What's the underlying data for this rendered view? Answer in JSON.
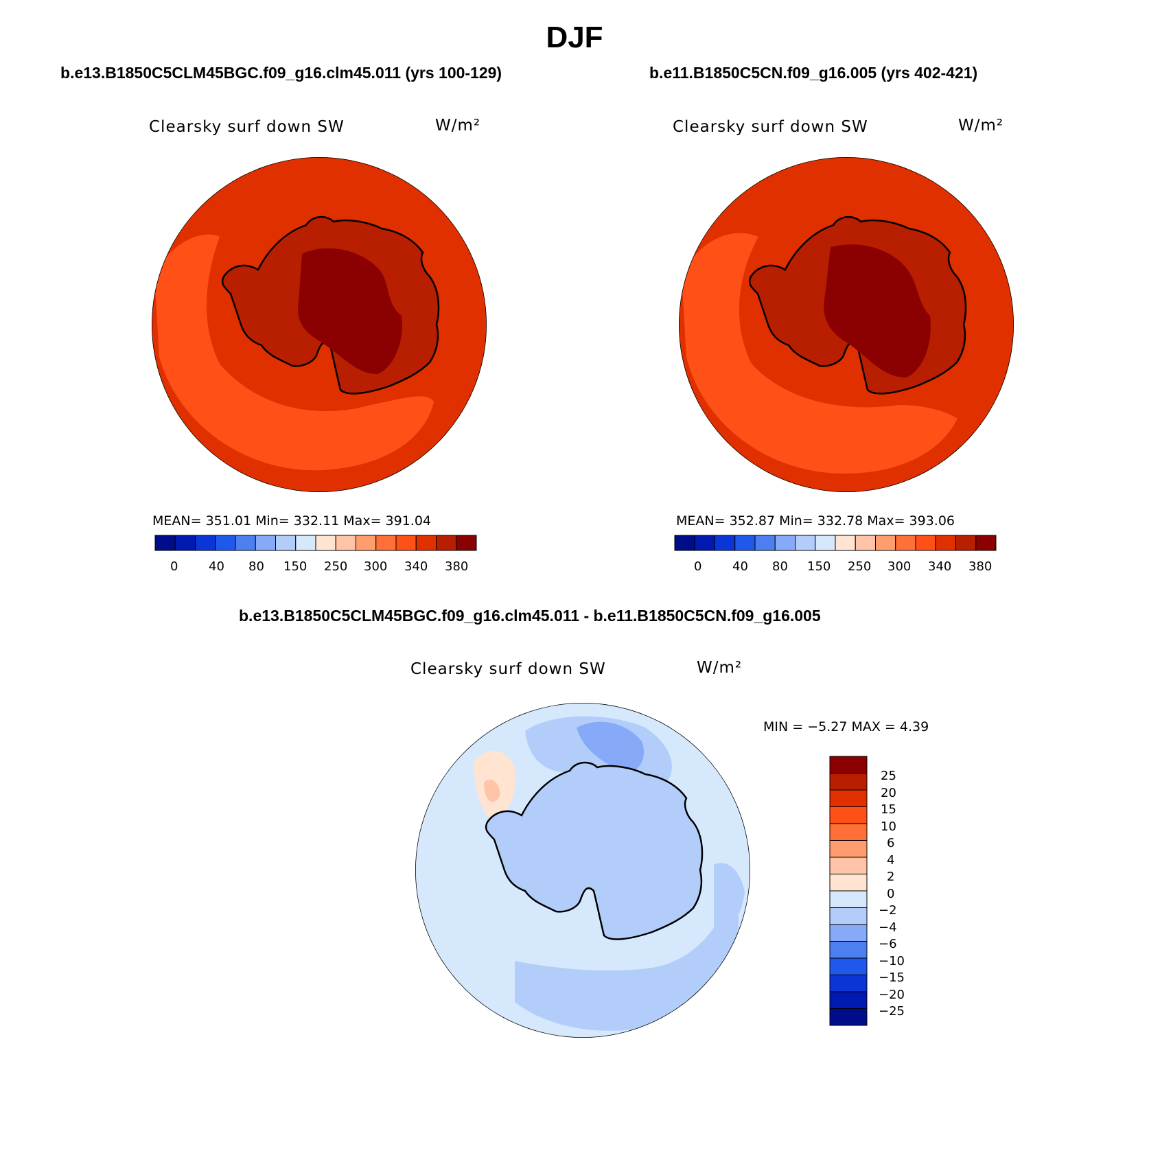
{
  "page": {
    "title": "DJF",
    "diff_title": "b.e13.B1850C5CLM45BGC.f09_g16.clm45.011 - b.e11.B1850C5CN.f09_g16.005"
  },
  "colors": {
    "map_warm": [
      "#8b0000",
      "#b81e00",
      "#e03000",
      "#ff5018",
      "#ff7038",
      "#ff9d6e",
      "#ffc3a8",
      "#ffe4d2"
    ],
    "map_cool": [
      "#d6e8fc",
      "#b3cdfb",
      "#86aaf7",
      "#4c7ff0",
      "#2058ec",
      "#0a36d6",
      "#0019b0",
      "#000d8a"
    ],
    "continent_outline": "#000000"
  },
  "panels": [
    {
      "id": "left",
      "title": "b.e13.B1850C5CLM45BGC.f09_g16.clm45.011 (yrs 100-129)",
      "variable": "Clearsky surf down SW",
      "units": "W/m²",
      "stats": "MEAN= 351.01   Min= 332.11   Max= 391.04",
      "mean": 351.01,
      "min": 332.11,
      "max": 391.04,
      "colorbar_ticks": [
        "0",
        "40",
        "80",
        "150",
        "250",
        "300",
        "340",
        "380"
      ]
    },
    {
      "id": "right",
      "title": "b.e11.B1850C5CN.f09_g16.005 (yrs 402-421)",
      "variable": "Clearsky surf down SW",
      "units": "W/m²",
      "stats": "MEAN= 352.87   Min= 332.78   Max= 393.06",
      "mean": 352.87,
      "min": 332.78,
      "max": 393.06,
      "colorbar_ticks": [
        "0",
        "40",
        "80",
        "150",
        "250",
        "300",
        "340",
        "380"
      ]
    }
  ],
  "diff_panel": {
    "variable": "Clearsky surf down SW",
    "units": "W/m²",
    "stats": "MIN =   −5.27 MAX =    4.39",
    "min": -5.27,
    "max": 4.39,
    "colorbar_ticks": [
      "25",
      "20",
      "15",
      "10",
      "6",
      "4",
      "2",
      "0",
      "−2",
      "−4",
      "−6",
      "−10",
      "−15",
      "−20",
      "−25"
    ]
  }
}
